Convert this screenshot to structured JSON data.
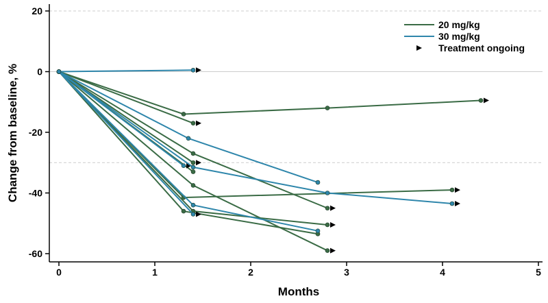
{
  "chart_data": {
    "type": "line",
    "title": "",
    "xlabel": "Months",
    "ylabel": "Change from baseline, %",
    "xlim": [
      0,
      5
    ],
    "ylim": [
      -60,
      20
    ],
    "xticks": [
      0,
      1,
      2,
      3,
      4,
      5
    ],
    "yticks": [
      -60,
      -40,
      -20,
      0,
      20
    ],
    "reference_lines": [
      {
        "y": 20,
        "style": "dashed",
        "color": "#cccccc"
      },
      {
        "y": 0,
        "style": "solid",
        "color": "#cccccc"
      },
      {
        "y": -30,
        "style": "dashed",
        "color": "#cccccc"
      }
    ],
    "legend_position": "top-right",
    "legend": [
      {
        "label": "20 mg/kg",
        "kind": "line",
        "color": "#3a6b45"
      },
      {
        "label": "30 mg/kg",
        "kind": "line",
        "color": "#2e86ab"
      },
      {
        "label": "Treatment ongoing",
        "kind": "marker",
        "color": "#000000"
      }
    ],
    "series": [
      {
        "group": "20 mg/kg",
        "points": [
          [
            0,
            0
          ],
          [
            1.3,
            -14
          ],
          [
            2.8,
            -12
          ],
          [
            4.4,
            -9.5
          ]
        ],
        "ongoing": true
      },
      {
        "group": "20 mg/kg",
        "points": [
          [
            0,
            0
          ],
          [
            1.4,
            -17
          ]
        ],
        "ongoing": true
      },
      {
        "group": "20 mg/kg",
        "points": [
          [
            0,
            0
          ],
          [
            1.4,
            -27
          ],
          [
            2.8,
            -45
          ]
        ],
        "ongoing": true
      },
      {
        "group": "20 mg/kg",
        "points": [
          [
            0,
            0
          ],
          [
            1.4,
            -30
          ]
        ],
        "ongoing": true
      },
      {
        "group": "20 mg/kg",
        "points": [
          [
            0,
            0
          ],
          [
            1.4,
            -33
          ]
        ],
        "ongoing": false
      },
      {
        "group": "20 mg/kg",
        "points": [
          [
            0,
            0
          ],
          [
            1.3,
            -41.5
          ],
          [
            4.1,
            -39
          ]
        ],
        "ongoing": true
      },
      {
        "group": "20 mg/kg",
        "points": [
          [
            0,
            0
          ],
          [
            1.4,
            -37.5
          ],
          [
            2.8,
            -59
          ]
        ],
        "ongoing": true
      },
      {
        "group": "20 mg/kg",
        "points": [
          [
            0,
            0
          ],
          [
            1.4,
            -46
          ],
          [
            2.8,
            -50.5
          ]
        ],
        "ongoing": true
      },
      {
        "group": "20 mg/kg",
        "points": [
          [
            0,
            0
          ],
          [
            1.3,
            -46
          ],
          [
            2.7,
            -53.5
          ]
        ],
        "ongoing": false
      },
      {
        "group": "30 mg/kg",
        "points": [
          [
            0,
            0
          ],
          [
            1.4,
            0.5
          ]
        ],
        "ongoing": true
      },
      {
        "group": "30 mg/kg",
        "points": [
          [
            0,
            0
          ],
          [
            1.35,
            -22
          ],
          [
            2.7,
            -36.5
          ]
        ],
        "ongoing": false
      },
      {
        "group": "30 mg/kg",
        "points": [
          [
            0,
            0
          ],
          [
            1.3,
            -31
          ]
        ],
        "ongoing": true
      },
      {
        "group": "30 mg/kg",
        "points": [
          [
            0,
            0
          ],
          [
            1.4,
            -31.5
          ],
          [
            2.8,
            -40
          ],
          [
            4.1,
            -43.5
          ]
        ],
        "ongoing": true
      },
      {
        "group": "30 mg/kg",
        "points": [
          [
            0,
            0
          ],
          [
            1.4,
            -44
          ],
          [
            2.7,
            -52.5
          ]
        ],
        "ongoing": false
      },
      {
        "group": "30 mg/kg",
        "points": [
          [
            0,
            0
          ],
          [
            1.4,
            -47
          ]
        ],
        "ongoing": true
      }
    ]
  }
}
